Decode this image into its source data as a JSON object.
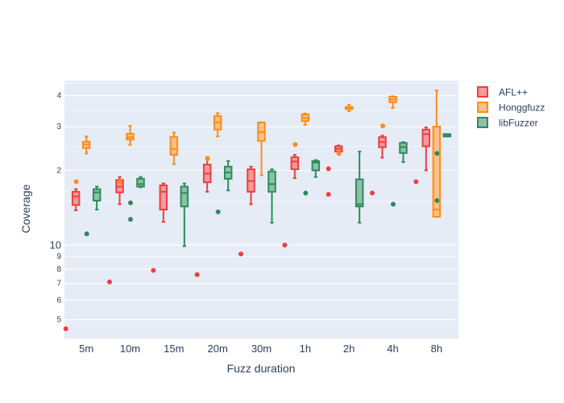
{
  "chart_data": {
    "type": "box",
    "xlabel": "Fuzz duration",
    "ylabel": "Coverage",
    "y_scale": "log",
    "ylim": [
      4.2,
      46
    ],
    "y_major_ticks": [
      {
        "value": 5,
        "label": "5",
        "small": true
      },
      {
        "value": 6,
        "label": "6",
        "small": true
      },
      {
        "value": 7,
        "label": "7",
        "small": true
      },
      {
        "value": 8,
        "label": "8",
        "small": true
      },
      {
        "value": 9,
        "label": "9",
        "small": true
      },
      {
        "value": 10,
        "label": "10",
        "small": false
      },
      {
        "value": 20,
        "label": "2",
        "small": true
      },
      {
        "value": 30,
        "label": "3",
        "small": true
      },
      {
        "value": 40,
        "label": "4",
        "small": true
      }
    ],
    "y_minor_ticks": [
      15,
      25,
      35,
      45
    ],
    "categories": [
      "5m",
      "10m",
      "15m",
      "20m",
      "30m",
      "1h",
      "2h",
      "4h",
      "8h"
    ],
    "legend_position": "top-right",
    "series": [
      {
        "name": "AFL++",
        "color": "#ef3e3e",
        "fill": "#f59a9a",
        "boxes": [
          {
            "lower": 13.8,
            "q1": 14.5,
            "median": 15.7,
            "q3": 16.4,
            "upper": 16.8,
            "outliers": [
              4.6
            ]
          },
          {
            "lower": 14.6,
            "q1": 16.3,
            "median": 17.2,
            "q3": 18.3,
            "upper": 18.8,
            "outliers": [
              7.1
            ]
          },
          {
            "lower": 12.4,
            "q1": 13.9,
            "median": 16.4,
            "q3": 17.4,
            "upper": 17.7,
            "outliers": [
              7.9
            ]
          },
          {
            "lower": 16.4,
            "q1": 17.9,
            "median": 19.4,
            "q3": 21.1,
            "upper": 22.6,
            "outliers": [
              7.6
            ]
          },
          {
            "lower": 14.6,
            "q1": 16.4,
            "median": 18.1,
            "q3": 20.2,
            "upper": 20.7,
            "outliers": [
              9.2
            ]
          },
          {
            "lower": 18.6,
            "q1": 20.2,
            "median": 21.7,
            "q3": 22.6,
            "upper": 23.1,
            "outliers": [
              10.0
            ]
          },
          {
            "lower": 23.7,
            "q1": 23.8,
            "median": 24.4,
            "q3": 25.0,
            "upper": 25.2,
            "outliers": [
              20.3,
              16.0
            ]
          },
          {
            "lower": 22.5,
            "q1": 24.8,
            "median": 26.0,
            "q3": 27.2,
            "upper": 27.6,
            "outliers": [
              16.2
            ]
          },
          {
            "lower": 20.0,
            "q1": 25.0,
            "median": 28.0,
            "q3": 29.2,
            "upper": 29.8,
            "outliers": [
              18.0
            ]
          }
        ]
      },
      {
        "name": "Honggfuzz",
        "color": "#ff8c19",
        "fill": "#ffc08a",
        "boxes": [
          {
            "lower": 23.4,
            "q1": 24.6,
            "median": 25.4,
            "q3": 26.1,
            "upper": 27.4,
            "outliers": [
              18.0
            ]
          },
          {
            "lower": 25.3,
            "q1": 26.6,
            "median": 27.2,
            "q3": 28.1,
            "upper": 30.2,
            "outliers": [
              18.0
            ]
          },
          {
            "lower": 21.2,
            "q1": 23.1,
            "median": 24.4,
            "q3": 27.3,
            "upper": 28.4,
            "outliers": []
          },
          {
            "lower": 27.4,
            "q1": 29.2,
            "median": 31.2,
            "q3": 33.1,
            "upper": 34.0,
            "outliers": [
              22.3
            ]
          },
          {
            "lower": 19.1,
            "q1": 26.3,
            "median": 28.5,
            "q3": 31.2,
            "upper": 31.2,
            "outliers": []
          },
          {
            "lower": 30.5,
            "q1": 31.6,
            "median": 32.5,
            "q3": 33.6,
            "upper": 33.9,
            "outliers": [
              25.4
            ]
          },
          {
            "lower": 34.6,
            "q1": 35.3,
            "median": 35.6,
            "q3": 36.0,
            "upper": 36.7,
            "outliers": [
              23.4
            ]
          },
          {
            "lower": 35.7,
            "q1": 37.6,
            "median": 38.6,
            "q3": 39.6,
            "upper": 39.8,
            "outliers": [
              30.2
            ]
          },
          {
            "lower": 13.0,
            "q1": 13.0,
            "median": 13.9,
            "q3": 30.0,
            "upper": 42.0,
            "outliers": []
          }
        ]
      },
      {
        "name": "libFuzzer",
        "color": "#2f8a5d",
        "fill": "#8cc1a5",
        "boxes": [
          {
            "lower": 13.9,
            "q1": 15.1,
            "median": 16.3,
            "q3": 16.8,
            "upper": 17.2,
            "outliers": [
              11.1
            ]
          },
          {
            "lower": 17.1,
            "q1": 17.2,
            "median": 17.6,
            "q3": 18.5,
            "upper": 18.8,
            "outliers": [
              14.8,
              12.7
            ]
          },
          {
            "lower": 9.9,
            "q1": 14.3,
            "median": 16.2,
            "q3": 17.2,
            "upper": 17.7,
            "outliers": []
          },
          {
            "lower": 16.6,
            "q1": 18.5,
            "median": 19.6,
            "q3": 20.7,
            "upper": 21.8,
            "outliers": [
              13.6
            ]
          },
          {
            "lower": 12.3,
            "q1": 16.4,
            "median": 17.6,
            "q3": 19.8,
            "upper": 20.2,
            "outliers": []
          },
          {
            "lower": 18.8,
            "q1": 20.0,
            "median": 21.5,
            "q3": 21.8,
            "upper": 22.0,
            "outliers": [
              16.2
            ]
          },
          {
            "lower": 12.3,
            "q1": 14.3,
            "median": 14.6,
            "q3": 18.4,
            "upper": 23.8,
            "outliers": []
          },
          {
            "lower": 21.6,
            "q1": 23.5,
            "median": 24.8,
            "q3": 25.8,
            "upper": 26.0,
            "outliers": [
              14.6
            ]
          },
          {
            "lower": 27.4,
            "q1": 27.4,
            "median": 27.6,
            "q3": 28.0,
            "upper": 28.0,
            "outliers": [
              23.4,
              15.1
            ]
          }
        ]
      }
    ]
  }
}
